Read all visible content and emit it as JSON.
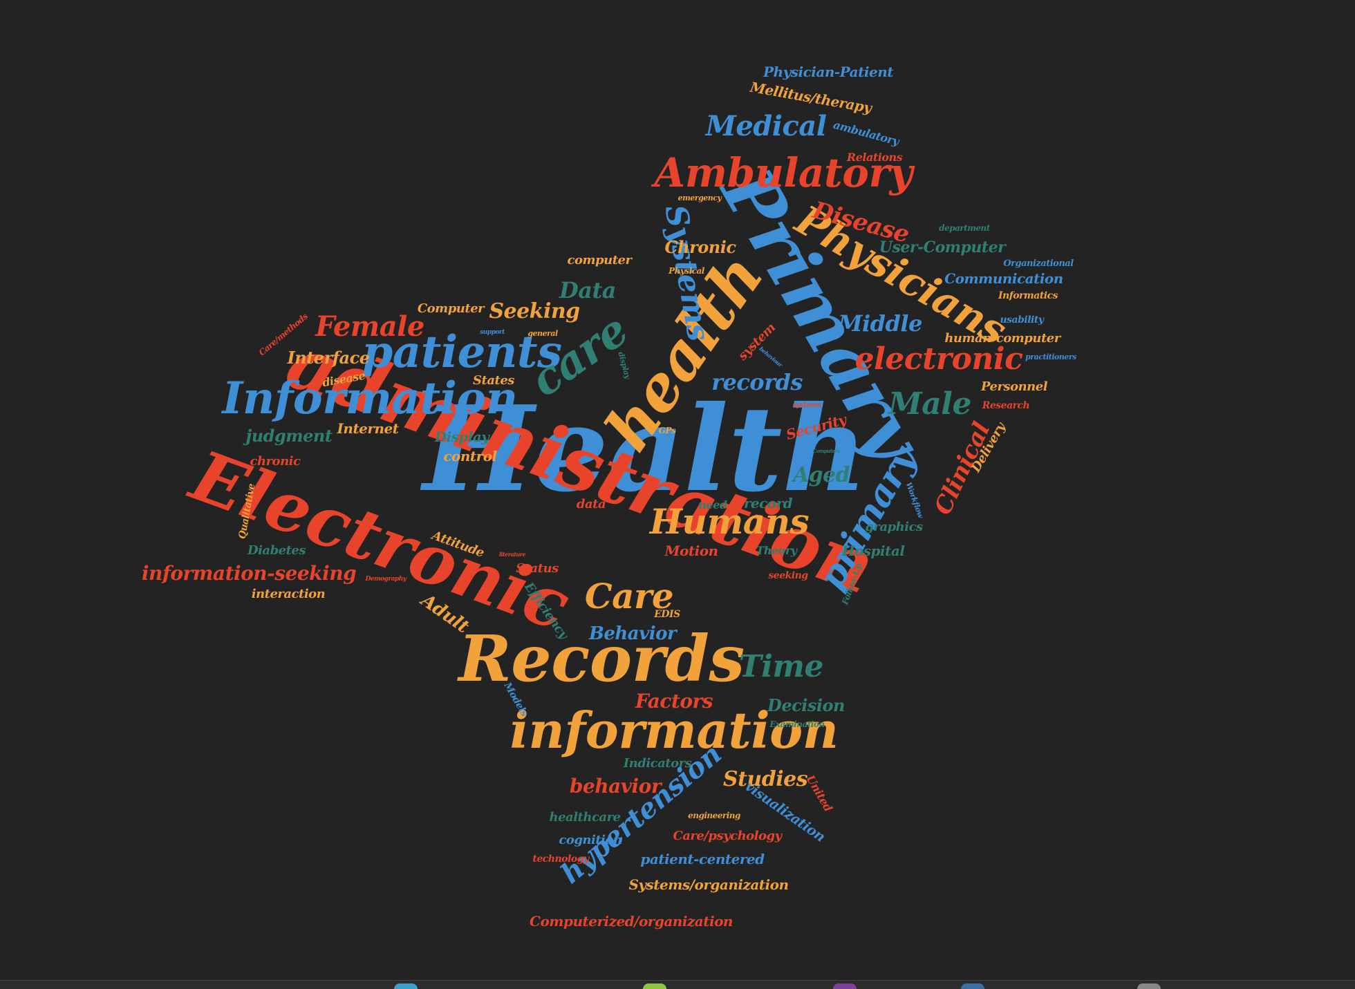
{
  "colors": {
    "background": "#232323",
    "blue": "#3f8fd6",
    "orange": "#f2a23a",
    "red": "#e8442b",
    "teal": "#2f7f73"
  },
  "words": [
    {
      "id": "w1",
      "text": "Health",
      "color": "blue"
    },
    {
      "id": "w2",
      "text": "administration",
      "color": "red"
    },
    {
      "id": "w3",
      "text": "Electronic",
      "color": "red"
    },
    {
      "id": "w4",
      "text": "Records",
      "color": "orange"
    },
    {
      "id": "w5",
      "text": "health",
      "color": "orange"
    },
    {
      "id": "w6",
      "text": "Primary",
      "color": "blue"
    },
    {
      "id": "w7",
      "text": "information",
      "color": "orange"
    },
    {
      "id": "w8",
      "text": "Information",
      "color": "blue"
    },
    {
      "id": "w9",
      "text": "patients",
      "color": "blue"
    },
    {
      "id": "w10",
      "text": "care",
      "color": "teal"
    },
    {
      "id": "w11",
      "text": "Ambulatory",
      "color": "red"
    },
    {
      "id": "w12",
      "text": "Physicians",
      "color": "orange"
    },
    {
      "id": "w13",
      "text": "Systems",
      "color": "blue"
    },
    {
      "id": "w14",
      "text": "primary",
      "color": "blue"
    },
    {
      "id": "w15",
      "text": "Humans",
      "color": "orange"
    },
    {
      "id": "w16",
      "text": "Care",
      "color": "orange"
    },
    {
      "id": "w17",
      "text": "electronic",
      "color": "red"
    },
    {
      "id": "w18",
      "text": "Male",
      "color": "teal"
    },
    {
      "id": "w19",
      "text": "Time",
      "color": "teal"
    },
    {
      "id": "w20",
      "text": "hypertension",
      "color": "blue"
    },
    {
      "id": "w21",
      "text": "Female",
      "color": "red"
    },
    {
      "id": "w22",
      "text": "records",
      "color": "blue"
    },
    {
      "id": "w23",
      "text": "Medical",
      "color": "blue"
    },
    {
      "id": "w24",
      "text": "Disease",
      "color": "red"
    },
    {
      "id": "w25",
      "text": "Data",
      "color": "teal"
    },
    {
      "id": "w26",
      "text": "Seeking",
      "color": "orange"
    },
    {
      "id": "w27",
      "text": "Middle",
      "color": "blue"
    },
    {
      "id": "w28",
      "text": "Clinical",
      "color": "red"
    },
    {
      "id": "w29",
      "text": "Aged",
      "color": "teal"
    },
    {
      "id": "w30",
      "text": "information-seeking",
      "color": "red"
    },
    {
      "id": "w31",
      "text": "Studies",
      "color": "orange"
    },
    {
      "id": "w32",
      "text": "behavior",
      "color": "red"
    },
    {
      "id": "w33",
      "text": "Factors",
      "color": "red"
    },
    {
      "id": "w34",
      "text": "Decision",
      "color": "teal"
    },
    {
      "id": "w35",
      "text": "Behavior",
      "color": "blue"
    },
    {
      "id": "w36",
      "text": "Adult",
      "color": "orange"
    },
    {
      "id": "w37",
      "text": "Chronic",
      "color": "orange"
    },
    {
      "id": "w38",
      "text": "User-Computer",
      "color": "teal"
    },
    {
      "id": "w39",
      "text": "Communication",
      "color": "blue"
    },
    {
      "id": "w40",
      "text": "Interface",
      "color": "orange"
    },
    {
      "id": "w41",
      "text": "judgment",
      "color": "teal"
    },
    {
      "id": "w42",
      "text": "Internet",
      "color": "orange"
    },
    {
      "id": "w43",
      "text": "Display",
      "color": "teal"
    },
    {
      "id": "w44",
      "text": "control",
      "color": "orange"
    },
    {
      "id": "w45",
      "text": "chronic",
      "color": "red"
    },
    {
      "id": "w46",
      "text": "Diabetes",
      "color": "teal"
    },
    {
      "id": "w47",
      "text": "interaction",
      "color": "orange"
    },
    {
      "id": "w48",
      "text": "Attitude",
      "color": "orange"
    },
    {
      "id": "w49",
      "text": "Motion",
      "color": "red"
    },
    {
      "id": "w50",
      "text": "Status",
      "color": "red"
    },
    {
      "id": "w51",
      "text": "Efficiency",
      "color": "teal"
    },
    {
      "id": "w52",
      "text": "Theory",
      "color": "teal"
    },
    {
      "id": "w53",
      "text": "Hospital",
      "color": "teal"
    },
    {
      "id": "w54",
      "text": "graphics",
      "color": "teal"
    },
    {
      "id": "w55",
      "text": "record",
      "color": "teal"
    },
    {
      "id": "w56",
      "text": "need",
      "color": "teal"
    },
    {
      "id": "w57",
      "text": "data",
      "color": "red"
    },
    {
      "id": "w58",
      "text": "Security",
      "color": "red"
    },
    {
      "id": "w59",
      "text": "Delivery",
      "color": "orange"
    },
    {
      "id": "w60",
      "text": "Personnel",
      "color": "orange"
    },
    {
      "id": "w61",
      "text": "Research",
      "color": "red"
    },
    {
      "id": "w62",
      "text": "human-computer",
      "color": "orange"
    },
    {
      "id": "w63",
      "text": "usability",
      "color": "blue"
    },
    {
      "id": "w64",
      "text": "practitioners",
      "color": "blue"
    },
    {
      "id": "w65",
      "text": "Informatics",
      "color": "orange"
    },
    {
      "id": "w66",
      "text": "Organizational",
      "color": "blue"
    },
    {
      "id": "w67",
      "text": "department",
      "color": "teal"
    },
    {
      "id": "w68",
      "text": "Relations",
      "color": "red"
    },
    {
      "id": "w69",
      "text": "ambulatory",
      "color": "blue"
    },
    {
      "id": "w70",
      "text": "Mellitus/therapy",
      "color": "orange"
    },
    {
      "id": "w71",
      "text": "Physician-Patient",
      "color": "blue"
    },
    {
      "id": "w72",
      "text": "emergency",
      "color": "orange"
    },
    {
      "id": "w73",
      "text": "computer",
      "color": "orange"
    },
    {
      "id": "w74",
      "text": "Physical",
      "color": "orange"
    },
    {
      "id": "w75",
      "text": "Computer",
      "color": "orange"
    },
    {
      "id": "w76",
      "text": "States",
      "color": "orange"
    },
    {
      "id": "w77",
      "text": "disease",
      "color": "orange"
    },
    {
      "id": "w78",
      "text": "Care/methods",
      "color": "red"
    },
    {
      "id": "w79",
      "text": "Qualitative",
      "color": "orange"
    },
    {
      "id": "w80",
      "text": "Demography",
      "color": "red"
    },
    {
      "id": "w81",
      "text": "EDIS",
      "color": "orange"
    },
    {
      "id": "w82",
      "text": "Models",
      "color": "blue"
    },
    {
      "id": "w83",
      "text": "Indicators",
      "color": "teal"
    },
    {
      "id": "w84",
      "text": "Examination",
      "color": "teal"
    },
    {
      "id": "w85",
      "text": "United",
      "color": "red"
    },
    {
      "id": "w86",
      "text": "visualization",
      "color": "blue"
    },
    {
      "id": "w87",
      "text": "healthcare",
      "color": "teal"
    },
    {
      "id": "w88",
      "text": "engineering",
      "color": "orange"
    },
    {
      "id": "w89",
      "text": "cognition",
      "color": "blue"
    },
    {
      "id": "w90",
      "text": "Care/psychology",
      "color": "red"
    },
    {
      "id": "w91",
      "text": "technology",
      "color": "red"
    },
    {
      "id": "w92",
      "text": "patient-centered",
      "color": "blue"
    },
    {
      "id": "w93",
      "text": "Systems/organization",
      "color": "orange"
    },
    {
      "id": "w94",
      "text": "Computerized/organization",
      "color": "red"
    },
    {
      "id": "w95",
      "text": "seeking",
      "color": "red"
    },
    {
      "id": "w96",
      "text": "Follow-Up",
      "color": "teal"
    },
    {
      "id": "w97",
      "text": "Workflow",
      "color": "blue"
    },
    {
      "id": "w98",
      "text": "system",
      "color": "red"
    },
    {
      "id": "w99",
      "text": "general",
      "color": "orange"
    },
    {
      "id": "w100",
      "text": "display",
      "color": "teal"
    },
    {
      "id": "w101",
      "text": "GPs",
      "color": "orange"
    },
    {
      "id": "w102",
      "text": "systems",
      "color": "red"
    },
    {
      "id": "w103",
      "text": "support",
      "color": "blue"
    },
    {
      "id": "w104",
      "text": "literature",
      "color": "red"
    },
    {
      "id": "w105",
      "text": "behaviour",
      "color": "blue"
    },
    {
      "id": "w106",
      "text": "Computers",
      "color": "teal"
    }
  ]
}
